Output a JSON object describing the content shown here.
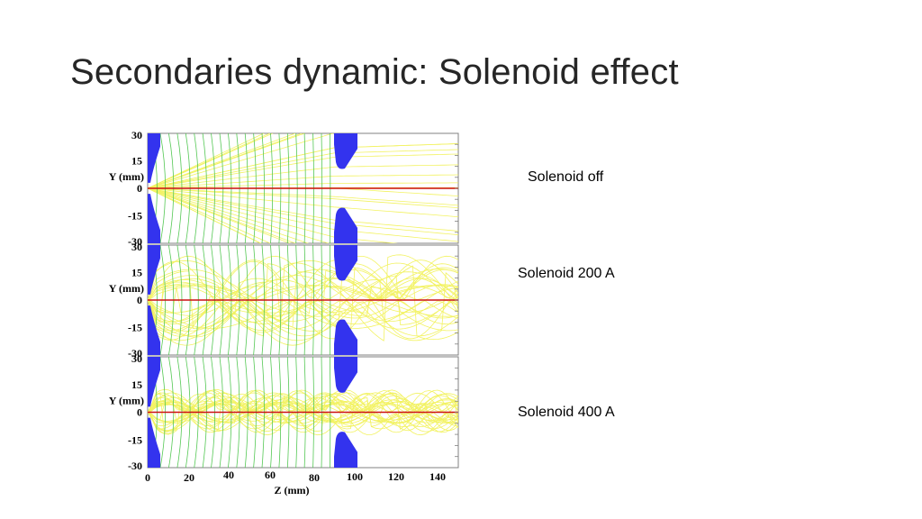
{
  "slide": {
    "title": "Secondaries dynamic: Solenoid effect"
  },
  "figure": {
    "x_axis_label": "Z (mm)",
    "x_ticks": [
      "0",
      "20",
      "40",
      "60",
      "80",
      "100",
      "120",
      "140"
    ],
    "x_range": [
      0,
      150
    ],
    "y_range": [
      -30,
      30
    ],
    "colors": {
      "electrode": "#3333ee",
      "trajectory": "#f2f25a",
      "equipotential": "#55c855",
      "primary_beam": "#cc1111"
    },
    "panels": [
      {
        "y_label": "Y (mm)",
        "y_ticks": [
          "30",
          "15",
          "0",
          "-15",
          "-30"
        ],
        "caption": "Solenoid off",
        "field_mode": "off"
      },
      {
        "y_label": "Y (mm)",
        "y_ticks": [
          "30",
          "15",
          "0",
          "-15",
          "-30"
        ],
        "caption": "Solenoid 200 A",
        "field_mode": "200"
      },
      {
        "y_label": "Y (mm)",
        "y_ticks": [
          "30",
          "15",
          "0",
          "-15",
          "-30"
        ],
        "caption": "Solenoid 400 A",
        "field_mode": "400"
      }
    ]
  }
}
